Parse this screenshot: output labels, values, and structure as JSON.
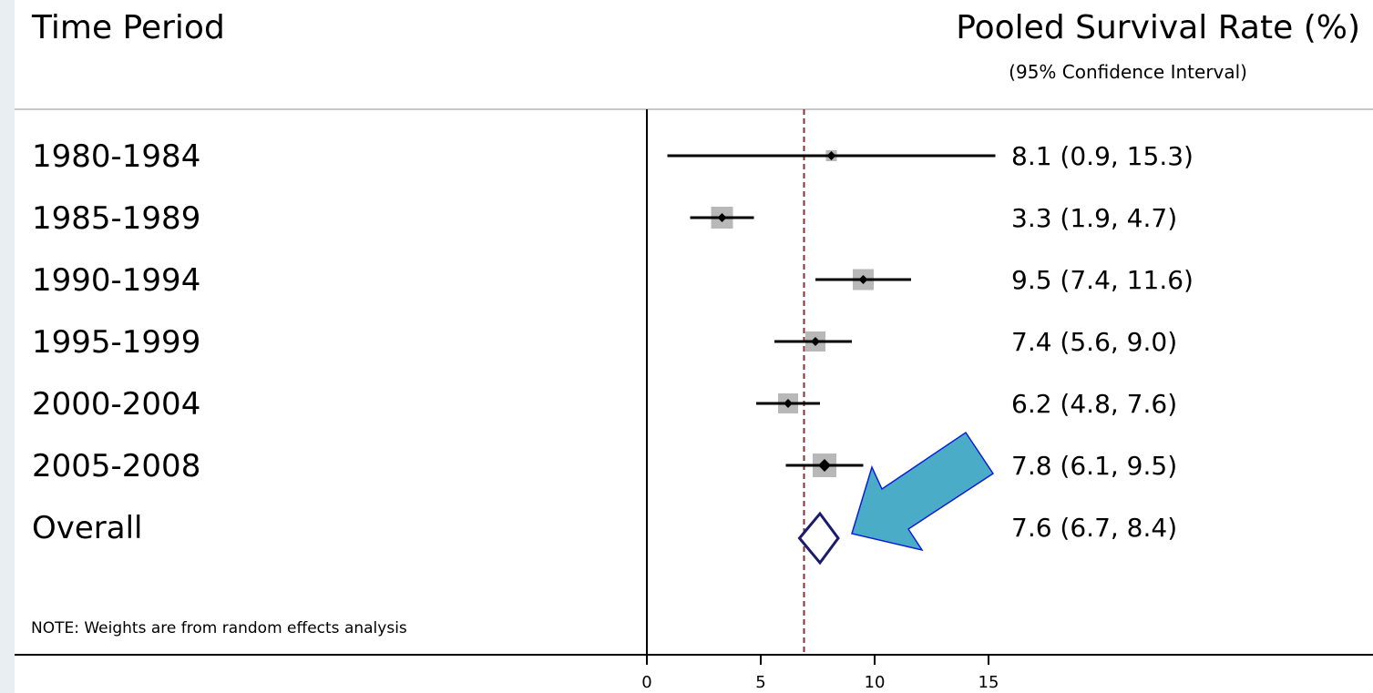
{
  "header": {
    "left_title": "Time Period",
    "right_title": "Pooled Survival Rate (%)",
    "right_subtitle": "(95% Confidence Interval)"
  },
  "note": "NOTE: Weights are from random effects analysis",
  "colors": {
    "ci_line": "#000000",
    "weight_box": "#b8b8b8",
    "diamond": "#1c1a6e",
    "reference_line": "#8b2f3a",
    "arrow_fill": "#4aacc6",
    "arrow_stroke": "#0a20d8",
    "separator": "#c8c8c8"
  },
  "chart_data": {
    "type": "forest",
    "xlim": [
      0,
      15
    ],
    "x_ticks": [
      "0",
      "5",
      "10",
      "15"
    ],
    "reference_line": 6.9,
    "rows": [
      {
        "label": "1980-1984",
        "estimate": 8.1,
        "lower": 0.9,
        "upper": 15.3,
        "text": "8.1 (0.9, 15.3)",
        "is_overall": false
      },
      {
        "label": "1985-1989",
        "estimate": 3.3,
        "lower": 1.9,
        "upper": 4.7,
        "text": "3.3 (1.9, 4.7)",
        "is_overall": false
      },
      {
        "label": "1990-1994",
        "estimate": 9.5,
        "lower": 7.4,
        "upper": 11.6,
        "text": "9.5 (7.4, 11.6)",
        "is_overall": false
      },
      {
        "label": "1995-1999",
        "estimate": 7.4,
        "lower": 5.6,
        "upper": 9.0,
        "text": "7.4 (5.6, 9.0)",
        "is_overall": false
      },
      {
        "label": "2000-2004",
        "estimate": 6.2,
        "lower": 4.8,
        "upper": 7.6,
        "text": "6.2 (4.8, 7.6)",
        "is_overall": false
      },
      {
        "label": "2005-2008",
        "estimate": 7.8,
        "lower": 6.1,
        "upper": 9.5,
        "text": "7.8 (6.1, 9.5)",
        "is_overall": false
      },
      {
        "label": "Overall",
        "estimate": 7.6,
        "lower": 6.7,
        "upper": 8.4,
        "text": "7.6 (6.7, 8.4)",
        "is_overall": true
      }
    ]
  }
}
